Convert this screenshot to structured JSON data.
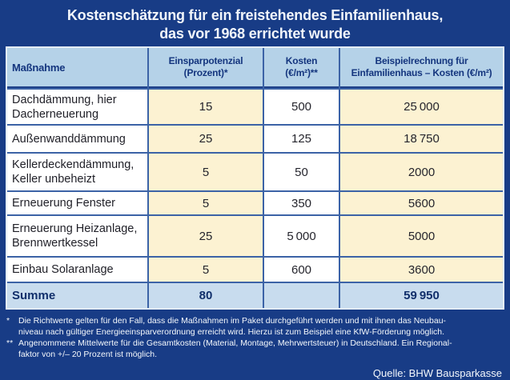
{
  "title": {
    "line1": "Kostenschätzung für ein freistehendes Einfamilienhaus,",
    "line2": "das vor 1968 errichtet wurde"
  },
  "chart_data": {
    "type": "table",
    "title": "Kostenschätzung für ein freistehendes Einfamilienhaus, das vor 1968 errichtet wurde",
    "columns": [
      {
        "line1": "Maßnahme",
        "line2": ""
      },
      {
        "line1": "Einsparpotenzial",
        "line2": "(Prozent)*"
      },
      {
        "line1": "Kosten",
        "line2": "(€/m²)**"
      },
      {
        "line1": "Beispielrechnung für",
        "line2": "Einfamilienhaus – Kosten (€/m²)"
      }
    ],
    "rows": [
      [
        "Dachdämmung, hier Dacherneuerung",
        "15",
        "500",
        "25 000"
      ],
      [
        "Außenwanddämmung",
        "25",
        "125",
        "18 750"
      ],
      [
        "Kellerdeckendämmung, Keller unbeheizt",
        "5",
        "50",
        "2000"
      ],
      [
        "Erneuerung Fenster",
        "5",
        "350",
        "5600"
      ],
      [
        "Erneuerung Heizanlage, Brennwertkessel",
        "25",
        "5 000",
        "5000"
      ],
      [
        "Einbau Solaranlage",
        "5",
        "600",
        "3600"
      ]
    ],
    "summary_row": [
      "Summe",
      "80",
      "",
      "59 950"
    ]
  },
  "footnotes": [
    {
      "marker": "*",
      "lines": [
        "Die Richtwerte gelten für den Fall, dass die Maßnahmen im Paket durchgeführt werden und mit ihnen das Neubau-",
        "niveau nach gültiger Energieeinsparverordnung erreicht wird. Hierzu ist zum Beispiel eine KfW-Förderung möglich."
      ]
    },
    {
      "marker": "**",
      "lines": [
        "Angenommene Mittelwerte für die Gesamtkosten (Material, Montage, Mehrwertsteuer) in Deutschland. Ein Regional-",
        "faktor von +/– 20 Prozent ist möglich."
      ]
    }
  ],
  "source": "Quelle: BHW Bausparkasse",
  "colors": {
    "background": "#183c86",
    "header_bg": "#b5d2e8",
    "summary_bg": "#c8dcee",
    "cream_cell": "#fcf2d2",
    "white_cell": "#ffffff",
    "grid_line": "#3c63a6",
    "outer_frame": "#e3ecf4",
    "header_text": "#14357e",
    "body_text": "#25252d",
    "title_text": "#f2f6fb"
  }
}
